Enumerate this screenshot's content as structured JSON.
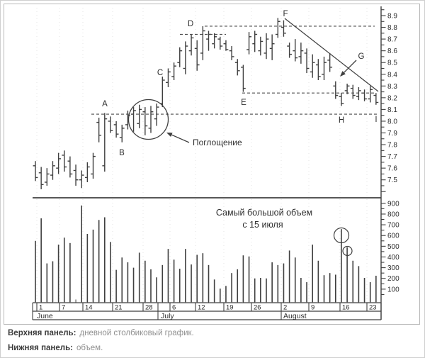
{
  "chart_data": {
    "type": "ohlc-with-volume",
    "title": "",
    "price_panel": {
      "ylim": [
        7.4,
        8.95
      ],
      "axis_labels": [
        "8.9",
        "8.8",
        "8.7",
        "8.6",
        "8.5",
        "8.4",
        "8.3",
        "8.2",
        "8.1",
        "8.0",
        "7.9",
        "7.8",
        "7.7",
        "7.6",
        "7.5"
      ],
      "bars_ohlc": [
        [
          7.62,
          7.66,
          7.49,
          7.52
        ],
        [
          7.56,
          7.61,
          7.42,
          7.46
        ],
        [
          7.48,
          7.6,
          7.45,
          7.55
        ],
        [
          7.54,
          7.66,
          7.5,
          7.62
        ],
        [
          7.6,
          7.73,
          7.55,
          7.68
        ],
        [
          7.71,
          7.75,
          7.57,
          7.61
        ],
        [
          7.66,
          7.7,
          7.52,
          7.55
        ],
        [
          7.58,
          7.63,
          7.45,
          7.5
        ],
        [
          7.5,
          7.58,
          7.43,
          7.54
        ],
        [
          7.52,
          7.65,
          7.48,
          7.61
        ],
        [
          7.55,
          7.73,
          7.51,
          7.7
        ],
        [
          7.99,
          8.03,
          7.82,
          7.88
        ],
        [
          7.62,
          8.07,
          7.57,
          8.02
        ],
        [
          8.0,
          8.04,
          7.9,
          7.92
        ],
        [
          7.97,
          8.0,
          7.86,
          7.89
        ],
        [
          7.86,
          7.97,
          7.82,
          7.94
        ],
        [
          7.97,
          8.09,
          7.93,
          8.05
        ],
        [
          8.06,
          8.12,
          7.91,
          8.09
        ],
        [
          7.98,
          8.14,
          7.94,
          8.1
        ],
        [
          8.08,
          8.12,
          7.88,
          7.96
        ],
        [
          7.94,
          8.13,
          7.9,
          8.08
        ],
        [
          8.02,
          8.15,
          7.96,
          8.12
        ],
        [
          8.15,
          8.38,
          8.12,
          8.35
        ],
        [
          8.33,
          8.45,
          8.29,
          8.42
        ],
        [
          8.38,
          8.5,
          8.35,
          8.47
        ],
        [
          8.5,
          8.63,
          8.46,
          8.6
        ],
        [
          8.45,
          8.68,
          8.4,
          8.64
        ],
        [
          8.6,
          8.74,
          8.56,
          8.71
        ],
        [
          8.62,
          8.69,
          8.43,
          8.48
        ],
        [
          8.58,
          8.81,
          8.52,
          8.77
        ],
        [
          8.7,
          8.77,
          8.6,
          8.74
        ],
        [
          8.66,
          8.75,
          8.62,
          8.72
        ],
        [
          8.7,
          8.72,
          8.61,
          8.64
        ],
        [
          8.66,
          8.69,
          8.6,
          8.61
        ],
        [
          8.6,
          8.64,
          8.52,
          8.55
        ],
        [
          8.5,
          8.53,
          8.39,
          8.43
        ],
        [
          8.46,
          8.48,
          8.25,
          8.28
        ],
        [
          8.61,
          8.76,
          8.57,
          8.72
        ],
        [
          8.66,
          8.77,
          8.59,
          8.74
        ],
        [
          8.6,
          8.72,
          8.56,
          8.68
        ],
        [
          8.58,
          8.75,
          8.53,
          8.7
        ],
        [
          8.62,
          8.74,
          8.52,
          8.66
        ],
        [
          8.74,
          8.88,
          8.71,
          8.85
        ],
        [
          8.8,
          8.86,
          8.72,
          8.75
        ],
        [
          8.64,
          8.67,
          8.54,
          8.57
        ],
        [
          8.6,
          8.7,
          8.51,
          8.54
        ],
        [
          8.55,
          8.67,
          8.49,
          8.6
        ],
        [
          8.58,
          8.62,
          8.41,
          8.45
        ],
        [
          8.42,
          8.57,
          8.37,
          8.5
        ],
        [
          8.48,
          8.53,
          8.35,
          8.38
        ],
        [
          8.4,
          8.55,
          8.35,
          8.5
        ],
        [
          8.52,
          8.58,
          8.42,
          8.46
        ],
        [
          8.3,
          8.34,
          8.19,
          8.22
        ],
        [
          8.21,
          8.24,
          8.13,
          8.15
        ],
        [
          8.26,
          8.32,
          8.23,
          8.3
        ],
        [
          8.28,
          8.31,
          8.19,
          8.22
        ],
        [
          8.21,
          8.29,
          8.18,
          8.26
        ],
        [
          8.24,
          8.27,
          8.17,
          8.19
        ],
        [
          8.19,
          8.3,
          8.16,
          8.27
        ],
        [
          8.22,
          8.24,
          8.14,
          8.16
        ]
      ]
    },
    "volume_panel": {
      "ylim": [
        0,
        900
      ],
      "axis_labels": [
        "900",
        "800",
        "700",
        "600",
        "500",
        "400",
        "300",
        "200",
        "100"
      ],
      "values": [
        550,
        760,
        340,
        360,
        515,
        580,
        530,
        0,
        880,
        615,
        655,
        745,
        770,
        540,
        280,
        395,
        350,
        300,
        440,
        365,
        285,
        210,
        325,
        475,
        375,
        290,
        475,
        330,
        420,
        435,
        325,
        190,
        105,
        130,
        250,
        285,
        415,
        405,
        200,
        205,
        200,
        350,
        325,
        340,
        460,
        395,
        205,
        165,
        515,
        365,
        230,
        250,
        235,
        660,
        490,
        365,
        315,
        205,
        165,
        225
      ]
    },
    "x_axis": {
      "day_cells": [
        [
          "1",
          51
        ],
        [
          "7",
          83
        ],
        [
          "14",
          116
        ],
        [
          "21",
          158
        ],
        [
          "28",
          201
        ],
        [
          "6",
          239
        ],
        [
          "12",
          275
        ],
        [
          "19",
          315
        ],
        [
          "26",
          354
        ],
        [
          "2",
          396
        ],
        [
          "9",
          435
        ],
        [
          "16",
          479
        ],
        [
          "23",
          517
        ]
      ],
      "date_dividers": [
        45,
        51,
        83,
        116,
        158,
        201,
        222,
        239,
        275,
        315,
        354,
        396,
        435,
        479,
        517,
        537
      ],
      "grid_dividers": [
        51,
        83,
        116,
        158,
        201,
        239,
        275,
        315,
        354,
        396,
        435,
        479,
        517
      ],
      "months": [
        [
          "June",
          51
        ],
        [
          "July",
          226
        ],
        [
          "August",
          399
        ]
      ],
      "month_dividers": [
        45,
        222,
        396,
        537
      ]
    },
    "annotations": {
      "letters": [
        [
          "A",
          147,
          149
        ],
        [
          "B",
          171,
          218
        ],
        [
          "C",
          225,
          105
        ],
        [
          "D",
          268,
          36
        ],
        [
          "E",
          343,
          147
        ],
        [
          "F",
          402,
          22
        ],
        [
          "G",
          509,
          82
        ],
        [
          "H",
          481,
          172
        ],
        [
          "I",
          530,
          171
        ]
      ],
      "dashed_levels": [
        [
          8.81,
          288,
          528
        ],
        [
          8.74,
          253,
          318
        ],
        [
          8.24,
          341,
          528
        ],
        [
          8.06,
          128,
          533
        ]
      ],
      "trendline": [
        401,
        25,
        533,
        128
      ],
      "g_arrow": [
        502,
        84,
        479,
        107
      ],
      "engulfing": {
        "label": "Поглощение",
        "circle": [
          208.5,
          167.5,
          28
        ],
        "arrow": [
          266,
          200,
          234,
          186
        ],
        "text_pos": [
          271,
          204
        ]
      },
      "volume_note": {
        "line1": "Самый большой объем",
        "line2": "с 15 июля",
        "line1_pos": [
          372,
          303
        ],
        "line2_pos": [
          370,
          320
        ],
        "circles": [
          [
            481,
            331,
            10.5
          ],
          [
            489.5,
            353,
            6.5
          ]
        ]
      }
    },
    "ink_color": "#3f3f3f",
    "grid_color": "#e3e3e3"
  },
  "caption": {
    "line1_label": "Верхняя панель:",
    "line1_text": "дневной столбиковый график.",
    "line2_label": "Нижняя панель:",
    "line2_text": "объем."
  }
}
